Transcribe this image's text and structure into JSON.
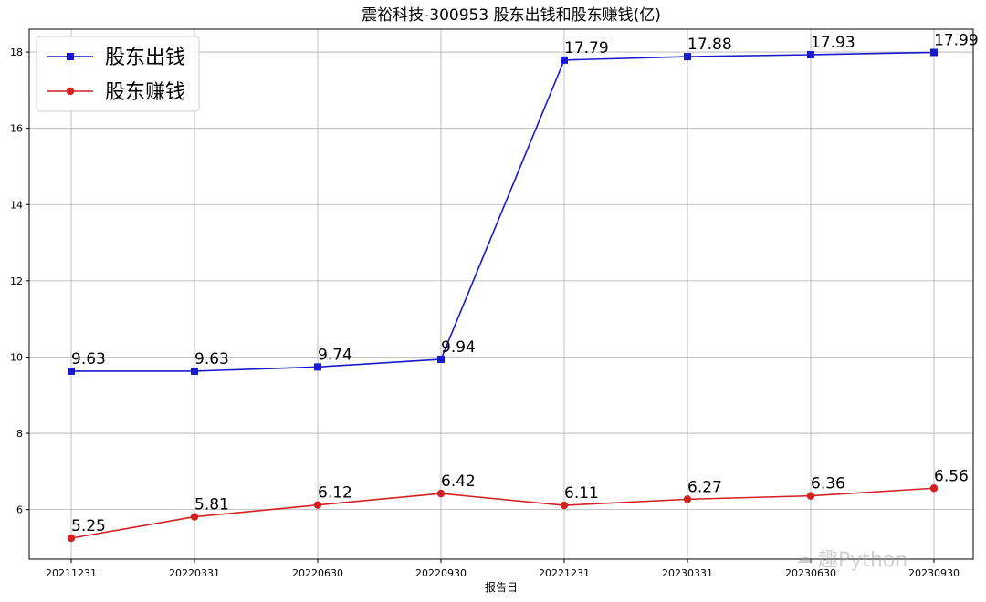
{
  "chart_data": {
    "type": "line",
    "title": "震裕科技-300953 股东出钱和股东赚钱(亿)",
    "xlabel": "报告日",
    "ylabel": "",
    "categories": [
      "20211231",
      "20220331",
      "20220630",
      "20220930",
      "20221231",
      "20230331",
      "20230630",
      "20230930"
    ],
    "ylim": [
      4.7,
      18.6
    ],
    "yticks": [
      6,
      8,
      10,
      12,
      14,
      16,
      18
    ],
    "grid": true,
    "legend_position": "top-left",
    "series": [
      {
        "name": "股东出钱",
        "color": "#1a1acc",
        "marker": "square",
        "values": [
          9.63,
          9.63,
          9.74,
          9.94,
          17.79,
          17.88,
          17.93,
          17.99
        ],
        "labels": [
          "9.63",
          "9.63",
          "9.74",
          "9.94",
          "17.79",
          "17.88",
          "17.93",
          "17.99"
        ]
      },
      {
        "name": "股东赚钱",
        "color": "#d42020",
        "marker": "circle",
        "values": [
          5.25,
          5.81,
          6.12,
          6.42,
          6.11,
          6.27,
          6.36,
          6.56
        ],
        "labels": [
          "5.25",
          "5.81",
          "6.12",
          "6.42",
          "6.11",
          "6.27",
          "6.36",
          "6.56"
        ]
      }
    ]
  },
  "watermark": {
    "text": "趣Python",
    "icon": "wechat-icon"
  }
}
